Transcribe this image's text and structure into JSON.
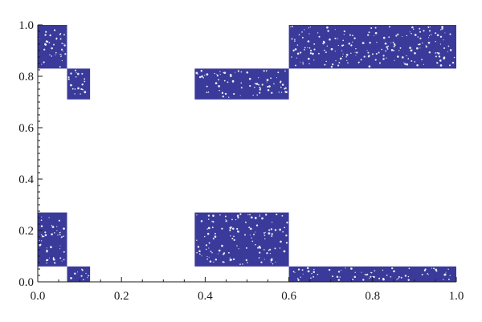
{
  "chart_data": {
    "type": "scatter",
    "title": "",
    "xlabel": "",
    "ylabel": "",
    "xlim": [
      0.0,
      1.0
    ],
    "ylim": [
      0.0,
      1.0
    ],
    "grid": false,
    "legend": "none",
    "marker_color": "#3a3a9a",
    "x_ticks": [
      0.0,
      0.2,
      0.4,
      0.6,
      0.8,
      1.0
    ],
    "x_tick_labels": [
      "0.0",
      "0.2",
      "0.4",
      "0.6",
      "0.8",
      "1.0"
    ],
    "y_ticks": [
      0.0,
      0.2,
      0.4,
      0.6,
      0.8,
      1.0
    ],
    "y_tick_labels": [
      "0.0",
      "0.2",
      "0.4",
      "0.6",
      "0.8",
      "1.0"
    ],
    "point_regions": [
      {
        "x": [
          0.0,
          0.07
        ],
        "y": [
          0.83,
          1.0
        ]
      },
      {
        "x": [
          0.07,
          0.125
        ],
        "y": [
          0.71,
          0.83
        ]
      },
      {
        "x": [
          0.375,
          0.6
        ],
        "y": [
          0.71,
          0.83
        ]
      },
      {
        "x": [
          0.6,
          1.0
        ],
        "y": [
          0.83,
          1.0
        ]
      },
      {
        "x": [
          0.0,
          0.07
        ],
        "y": [
          0.06,
          0.27
        ]
      },
      {
        "x": [
          0.375,
          0.6
        ],
        "y": [
          0.06,
          0.27
        ]
      },
      {
        "x": [
          0.07,
          0.125
        ],
        "y": [
          0.0,
          0.06
        ]
      },
      {
        "x": [
          0.6,
          1.0
        ],
        "y": [
          0.0,
          0.06
        ]
      }
    ]
  }
}
